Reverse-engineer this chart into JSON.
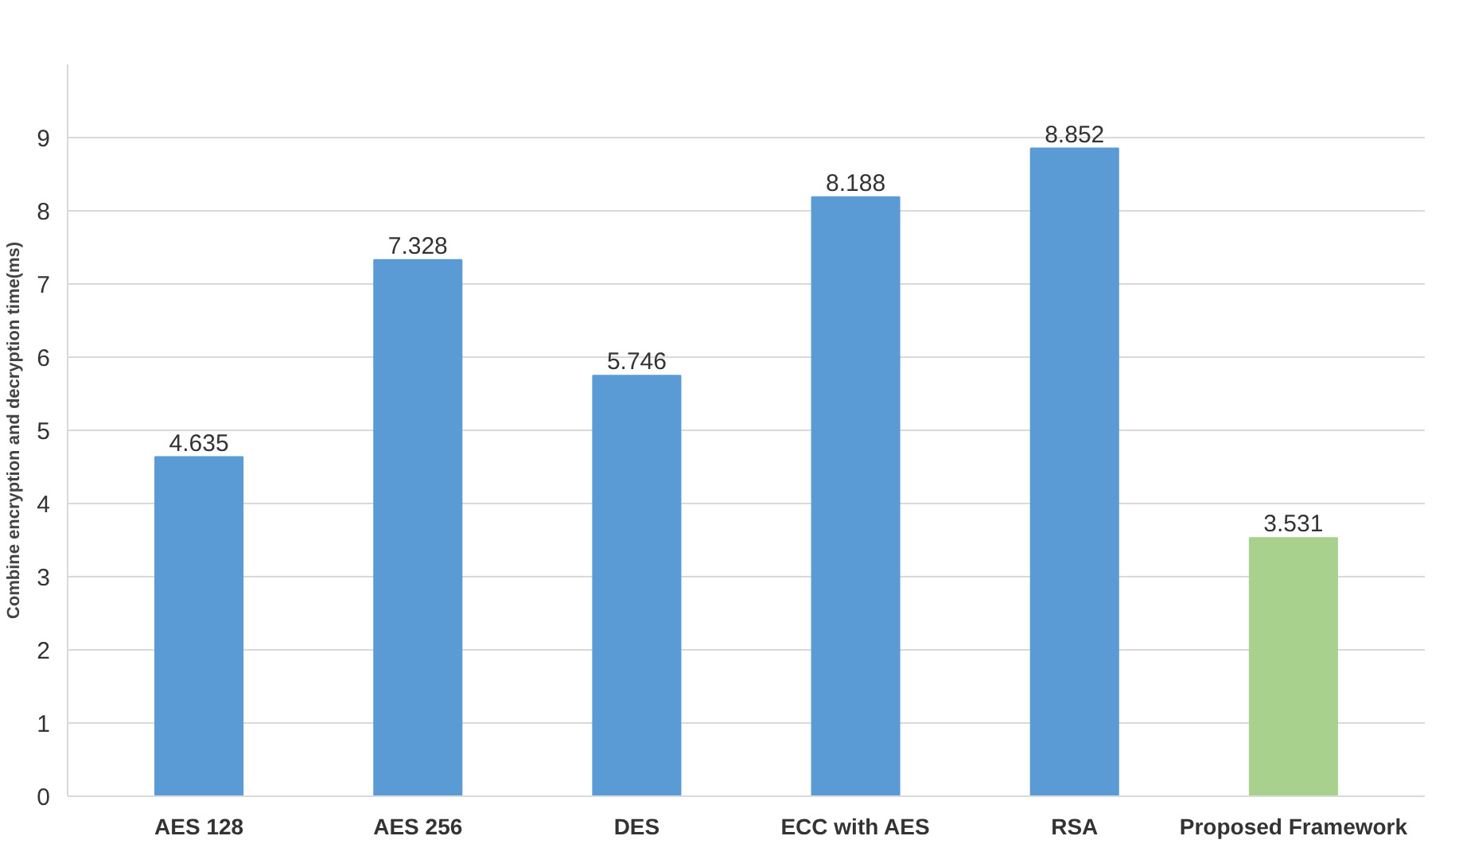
{
  "chart_data": {
    "type": "bar",
    "ylabel": "Combine encryption and decryption time(ms)",
    "categories": [
      "AES 128",
      "AES 256",
      "DES",
      "ECC with AES",
      "RSA",
      "Proposed Framework"
    ],
    "values": [
      4.635,
      7.328,
      5.746,
      8.188,
      8.852,
      3.531
    ],
    "colors": [
      "#5b9bd5",
      "#5b9bd5",
      "#5b9bd5",
      "#5b9bd5",
      "#5b9bd5",
      "#a9d18e"
    ],
    "ylim": [
      0,
      10
    ],
    "yticks": [
      0,
      1,
      2,
      3,
      4,
      5,
      6,
      7,
      8,
      9
    ],
    "grid": "y",
    "data_labels": true
  }
}
